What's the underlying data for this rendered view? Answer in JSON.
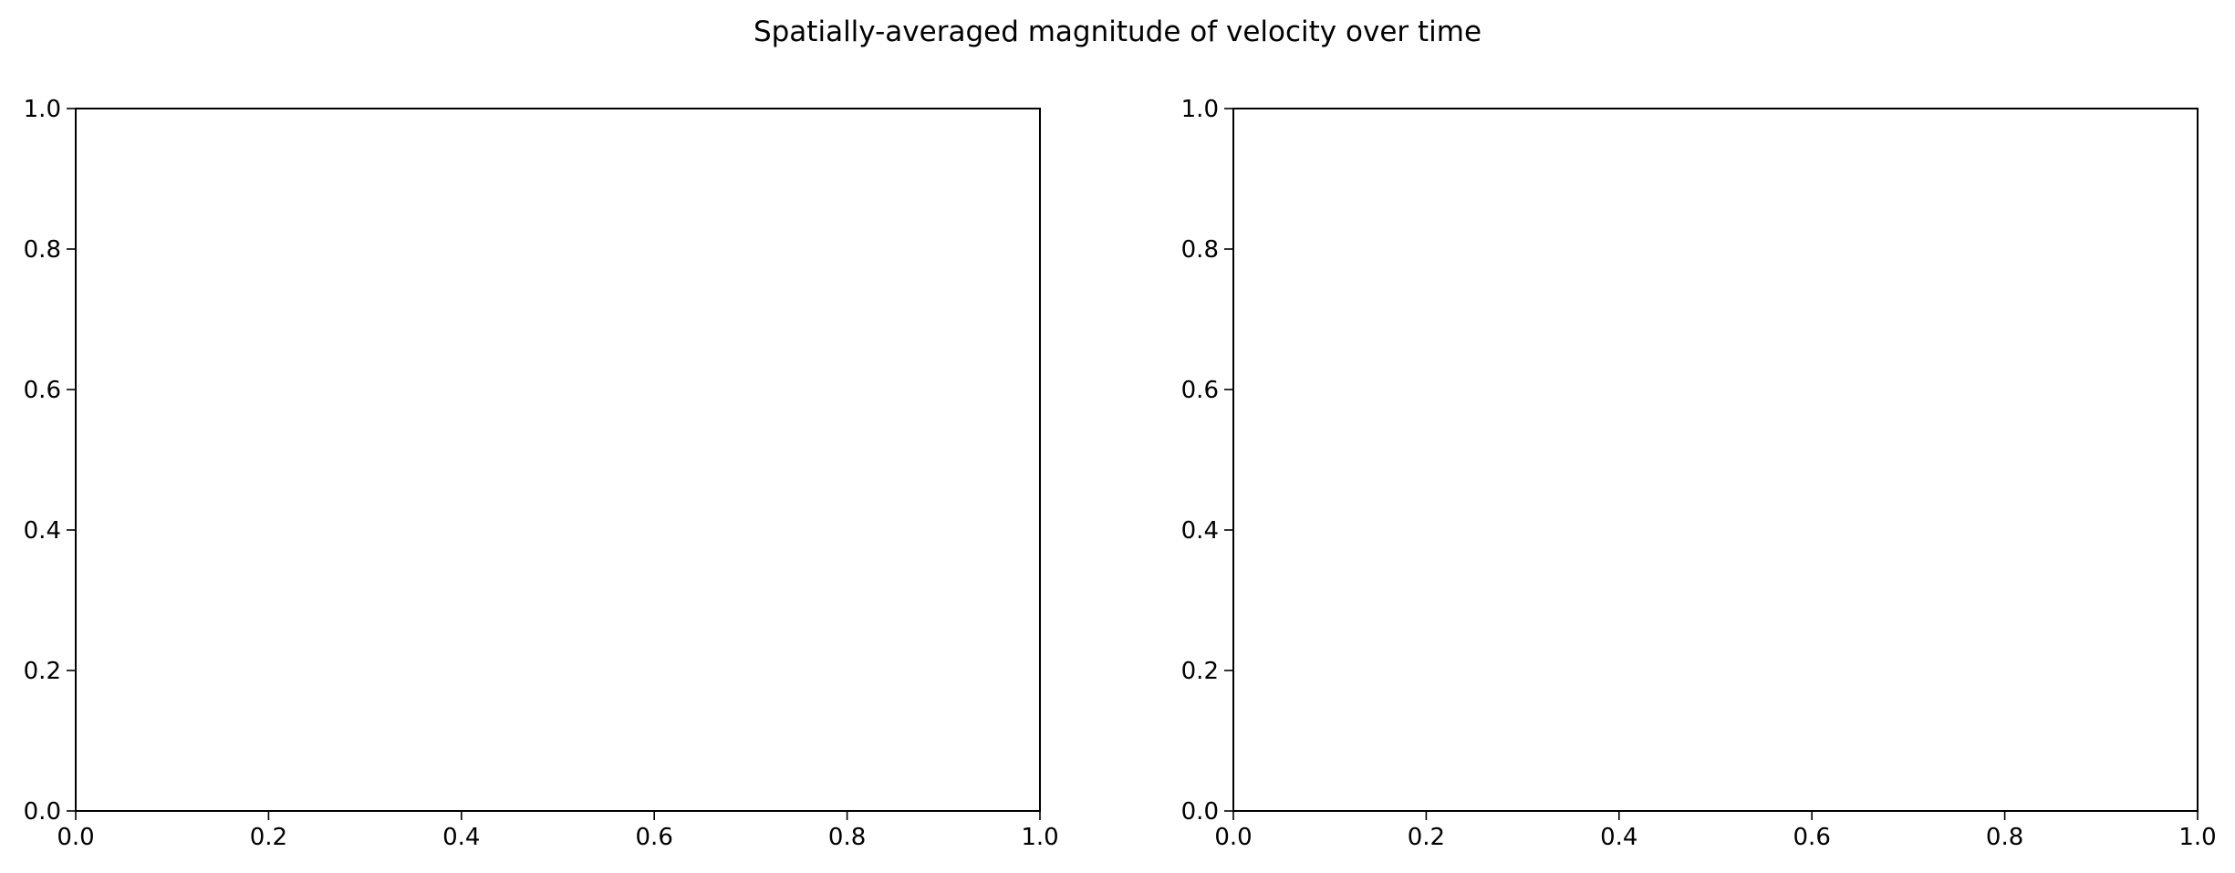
{
  "figure": {
    "suptitle": "Spatially-averaged magnitude of velocity over time",
    "background": "#ffffff",
    "axes_color": "#000000"
  },
  "chart_data": [
    {
      "type": "line",
      "title": "",
      "xlabel": "",
      "ylabel": "",
      "xlim": [
        0.0,
        1.0
      ],
      "ylim": [
        0.0,
        1.0
      ],
      "xticks": [
        "0.0",
        "0.2",
        "0.4",
        "0.6",
        "0.8",
        "1.0"
      ],
      "yticks": [
        "0.0",
        "0.2",
        "0.4",
        "0.6",
        "0.8",
        "1.0"
      ],
      "grid": false,
      "series": []
    },
    {
      "type": "line",
      "title": "",
      "xlabel": "",
      "ylabel": "",
      "xlim": [
        0.0,
        1.0
      ],
      "ylim": [
        0.0,
        1.0
      ],
      "xticks": [
        "0.0",
        "0.2",
        "0.4",
        "0.6",
        "0.8",
        "1.0"
      ],
      "yticks": [
        "0.0",
        "0.2",
        "0.4",
        "0.6",
        "0.8",
        "1.0"
      ],
      "grid": false,
      "series": []
    }
  ]
}
